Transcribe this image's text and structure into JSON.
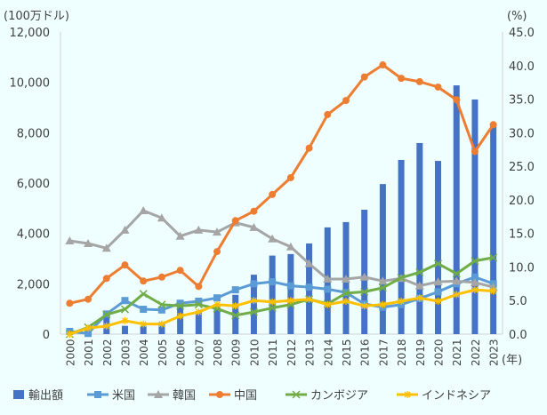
{
  "chart_data": {
    "type": "bar+line",
    "left_axis_label": "(100万ドル)",
    "right_axis_label": "(%)",
    "x_unit_label": "(年)",
    "left_ylim": [
      0,
      12000
    ],
    "left_ticks": [
      "0",
      "2,000",
      "4,000",
      "6,000",
      "8,000",
      "10,000",
      "12,000"
    ],
    "right_ylim": [
      0,
      45
    ],
    "right_ticks": [
      "0.0",
      "5.0",
      "10.0",
      "15.0",
      "20.0",
      "25.0",
      "30.0",
      "35.0",
      "40.0",
      "45.0"
    ],
    "grid": false,
    "legend_position": "bottom",
    "categories": [
      "2000",
      "2001",
      "2002",
      "2003",
      "2004",
      "2005",
      "2006",
      "2007",
      "2008",
      "2009",
      "2010",
      "2011",
      "2012",
      "2013",
      "2014",
      "2015",
      "2016",
      "2017",
      "2018",
      "2019",
      "2020",
      "2021",
      "2022",
      "2023"
    ],
    "bar_series": {
      "name": "輸出額",
      "axis": "left",
      "color": "#4472c4",
      "values": [
        120,
        150,
        860,
        330,
        330,
        470,
        1270,
        920,
        1200,
        1560,
        2360,
        3120,
        3180,
        3600,
        4240,
        4450,
        4940,
        5960,
        6920,
        7590,
        6880,
        9880,
        9320,
        8330
      ]
    },
    "line_series": [
      {
        "name": "米国",
        "axis": "right",
        "color": "#5b9bd5",
        "marker": "square",
        "values": [
          0.4,
          0.1,
          3.0,
          5.0,
          3.7,
          3.6,
          4.6,
          4.9,
          5.4,
          6.6,
          7.5,
          7.8,
          7.2,
          7.0,
          6.7,
          6.2,
          4.5,
          4.0,
          4.4,
          5.3,
          6.3,
          7.5,
          8.5,
          7.5
        ]
      },
      {
        "name": "韓国",
        "axis": "right",
        "color": "#a5a5a5",
        "marker": "triangle",
        "values": [
          13.9,
          13.5,
          12.8,
          15.5,
          18.4,
          17.3,
          14.6,
          15.5,
          15.2,
          16.6,
          15.9,
          14.2,
          13.0,
          10.5,
          8.2,
          8.2,
          8.5,
          7.9,
          8.3,
          7.2,
          7.8,
          7.9,
          7.7,
          7.0
        ]
      },
      {
        "name": "中国",
        "axis": "right",
        "color": "#ed7d31",
        "marker": "circle",
        "values": [
          4.6,
          5.2,
          8.3,
          10.3,
          7.9,
          8.5,
          9.5,
          7.1,
          12.3,
          16.9,
          18.3,
          20.8,
          23.3,
          27.7,
          32.7,
          34.8,
          38.3,
          40.1,
          38.1,
          37.6,
          36.8,
          34.9,
          27.2,
          31.2
        ]
      },
      {
        "name": "カンボジア",
        "axis": "right",
        "color": "#70ad47",
        "marker": "x",
        "values": [
          0.0,
          1.0,
          2.9,
          3.7,
          6.0,
          4.4,
          4.2,
          4.4,
          3.8,
          2.8,
          3.3,
          3.9,
          4.4,
          5.2,
          4.5,
          6.1,
          6.3,
          6.9,
          8.4,
          9.2,
          10.5,
          9.0,
          10.9,
          11.4
        ]
      },
      {
        "name": "インドネシア",
        "axis": "right",
        "color": "#ffc000",
        "marker": "star",
        "values": [
          0.0,
          0.9,
          1.2,
          2.0,
          1.5,
          1.5,
          2.7,
          3.3,
          4.4,
          4.2,
          5.0,
          4.8,
          5.0,
          5.2,
          4.4,
          4.9,
          4.2,
          4.4,
          4.9,
          5.4,
          4.9,
          5.9,
          6.6,
          6.4
        ]
      }
    ]
  }
}
